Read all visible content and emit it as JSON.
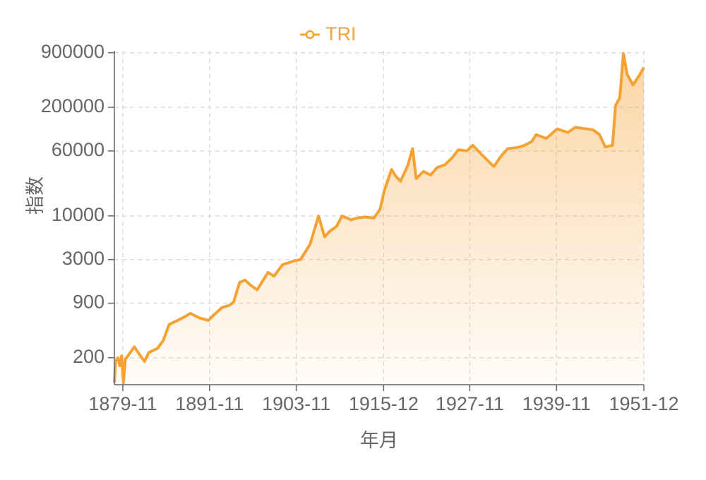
{
  "chart_data": {
    "type": "area",
    "x_label": "年月",
    "y_label": "指数",
    "log_scale": true,
    "grid": true,
    "legend": "top",
    "series": [
      {
        "name": "TRI",
        "color": "#f5a234",
        "x": [
          "1878-09",
          "1878-11",
          "1879-03",
          "1879-06",
          "1879-09",
          "1879-12",
          "1880-03",
          "1881-06",
          "1882-11",
          "1883-06",
          "1884-09",
          "1885-06",
          "1886-04",
          "1887-06",
          "1888-06",
          "1889-03",
          "1890-06",
          "1891-09",
          "1892-06",
          "1893-08",
          "1894-08",
          "1895-03",
          "1896-01",
          "1896-10",
          "1897-06",
          "1898-06",
          "1899-12",
          "1900-10",
          "1901-12",
          "1903-08",
          "1904-06",
          "1905-10",
          "1906-12",
          "1907-10",
          "1908-06",
          "1909-06",
          "1910-03",
          "1911-06",
          "1912-06",
          "1913-06",
          "1914-08",
          "1915-06",
          "1916-01",
          "1917-01",
          "1917-08",
          "1918-04",
          "1919-04",
          "1919-12",
          "1920-06",
          "1921-06",
          "1922-06",
          "1923-05",
          "1924-06",
          "1925-06",
          "1926-04",
          "1927-06",
          "1928-04",
          "1929-06",
          "1930-06",
          "1931-03",
          "1932-03",
          "1933-02",
          "1934-06",
          "1935-06",
          "1936-06",
          "1937-01",
          "1938-06",
          "1939-12",
          "1941-06",
          "1942-06",
          "1943-06",
          "1944-11",
          "1945-10",
          "1946-08",
          "1947-08",
          "1948-01",
          "1948-08",
          "1949-02",
          "1949-08",
          "1950-06",
          "1951-05",
          "1951-12"
        ],
        "values": [
          100,
          180,
          200,
          160,
          210,
          100,
          190,
          270,
          180,
          230,
          260,
          320,
          500,
          560,
          620,
          680,
          600,
          560,
          650,
          800,
          850,
          930,
          1600,
          1700,
          1500,
          1300,
          2100,
          1900,
          2600,
          2900,
          3000,
          4600,
          10000,
          5600,
          6500,
          7500,
          10000,
          9000,
          9500,
          9700,
          9400,
          12000,
          20000,
          36000,
          30000,
          26000,
          40000,
          64000,
          28000,
          34000,
          31000,
          38000,
          41000,
          50000,
          62000,
          60000,
          70000,
          55000,
          45000,
          39000,
          52000,
          64000,
          66000,
          70000,
          78000,
          94000,
          85000,
          110000,
          100000,
          115000,
          112000,
          108000,
          95000,
          67000,
          70000,
          210000,
          260000,
          880000,
          500000,
          370000,
          490000,
          600000
        ]
      }
    ],
    "xlim": [
      "1878-09",
      "1951-12"
    ],
    "xticks": [
      "1879-11",
      "1891-11",
      "1903-11",
      "1915-12",
      "1927-11",
      "1939-11",
      "1951-12"
    ],
    "ylim": [
      95,
      950000
    ],
    "yticks": [
      200,
      900,
      3000,
      10000,
      60000,
      200000,
      900000
    ]
  }
}
